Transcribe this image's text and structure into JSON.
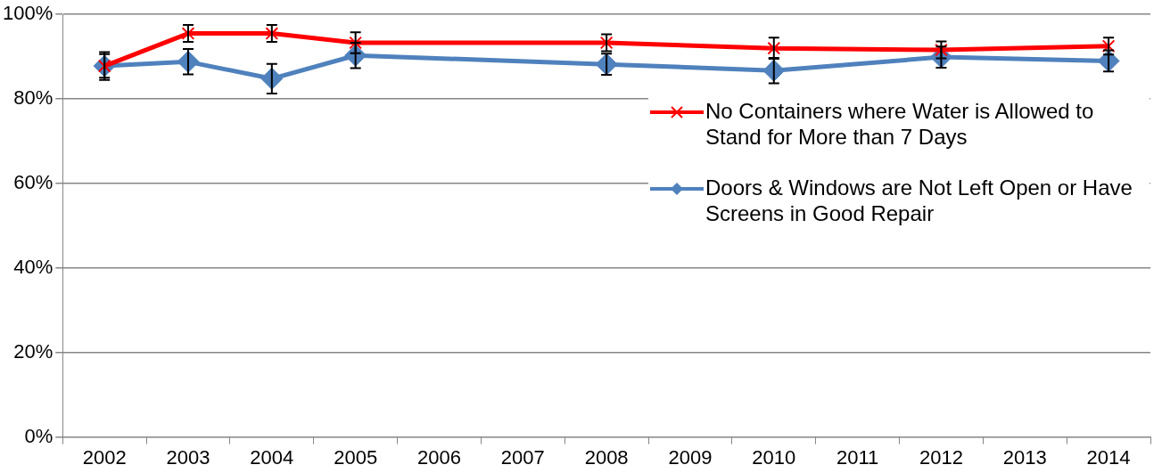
{
  "chart_data": {
    "type": "line",
    "categories": [
      "2002",
      "2003",
      "2004",
      "2005",
      "2006",
      "2007",
      "2008",
      "2009",
      "2010",
      "2011",
      "2012",
      "2013",
      "2014"
    ],
    "series": [
      {
        "name": "No Containers where Water is Allowed to Stand for More than 7 Days",
        "color": "#ff0000",
        "marker": "cross",
        "values": [
          87.8,
          95.5,
          95.5,
          93.3,
          null,
          null,
          93.3,
          null,
          92,
          null,
          91.6,
          null,
          92.5
        ],
        "errors": [
          2.8,
          2,
          2,
          2.5,
          null,
          null,
          2,
          null,
          2.5,
          null,
          2,
          null,
          2
        ]
      },
      {
        "name": "Doors & Windows are Not Left Open or Have Screens in Good Repair",
        "color": "#4f81bd",
        "marker": "diamond",
        "values": [
          87.8,
          88.8,
          84.8,
          90.3,
          null,
          null,
          88.2,
          null,
          86.7,
          null,
          89.9,
          null,
          89
        ],
        "errors": [
          3.3,
          3,
          3.5,
          3,
          null,
          null,
          2.5,
          null,
          3,
          null,
          2.5,
          null,
          2.5
        ]
      }
    ],
    "ylim": [
      0,
      100
    ],
    "yticks": [
      {
        "value": 0,
        "label": "0%"
      },
      {
        "value": 20,
        "label": "20%"
      },
      {
        "value": 40,
        "label": "40%"
      },
      {
        "value": 60,
        "label": "60%"
      },
      {
        "value": 80,
        "label": "80%"
      },
      {
        "value": 100,
        "label": "100%"
      }
    ],
    "grid": "y",
    "legend": "right",
    "line_style": "solid"
  }
}
